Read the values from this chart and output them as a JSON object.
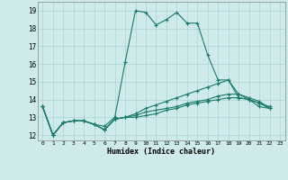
{
  "xlabel": "Humidex (Indice chaleur)",
  "ylabel": "",
  "bg_color": "#ceeaea",
  "grid_color": "#aad4d4",
  "line_color": "#1a7a6a",
  "xlim": [
    -0.5,
    23.5
  ],
  "ylim": [
    11.7,
    19.5
  ],
  "xticks": [
    0,
    1,
    2,
    3,
    4,
    5,
    6,
    7,
    8,
    9,
    10,
    11,
    12,
    13,
    14,
    15,
    16,
    17,
    18,
    19,
    20,
    21,
    22,
    23
  ],
  "yticks": [
    12,
    13,
    14,
    15,
    16,
    17,
    18,
    19
  ],
  "series": [
    [
      13.6,
      12.0,
      12.7,
      12.8,
      12.8,
      12.6,
      12.5,
      13.0,
      16.1,
      19.0,
      18.9,
      18.2,
      18.5,
      18.9,
      18.3,
      18.3,
      16.5,
      15.1,
      15.1,
      14.1,
      14.0,
      13.6,
      13.5
    ],
    [
      13.6,
      12.0,
      12.7,
      12.8,
      12.8,
      12.6,
      12.3,
      12.9,
      13.0,
      13.0,
      13.1,
      13.2,
      13.4,
      13.5,
      13.7,
      13.8,
      13.9,
      14.0,
      14.1,
      14.1,
      14.0,
      13.8,
      13.6
    ],
    [
      13.6,
      12.0,
      12.7,
      12.8,
      12.8,
      12.6,
      12.3,
      12.9,
      13.0,
      13.1,
      13.3,
      13.4,
      13.5,
      13.6,
      13.8,
      13.9,
      14.0,
      14.2,
      14.3,
      14.3,
      14.1,
      13.9,
      13.5
    ],
    [
      13.6,
      12.0,
      12.7,
      12.8,
      12.8,
      12.6,
      12.3,
      12.9,
      13.0,
      13.2,
      13.5,
      13.7,
      13.9,
      14.1,
      14.3,
      14.5,
      14.7,
      14.9,
      15.1,
      14.3,
      14.0,
      13.8,
      13.5
    ]
  ]
}
